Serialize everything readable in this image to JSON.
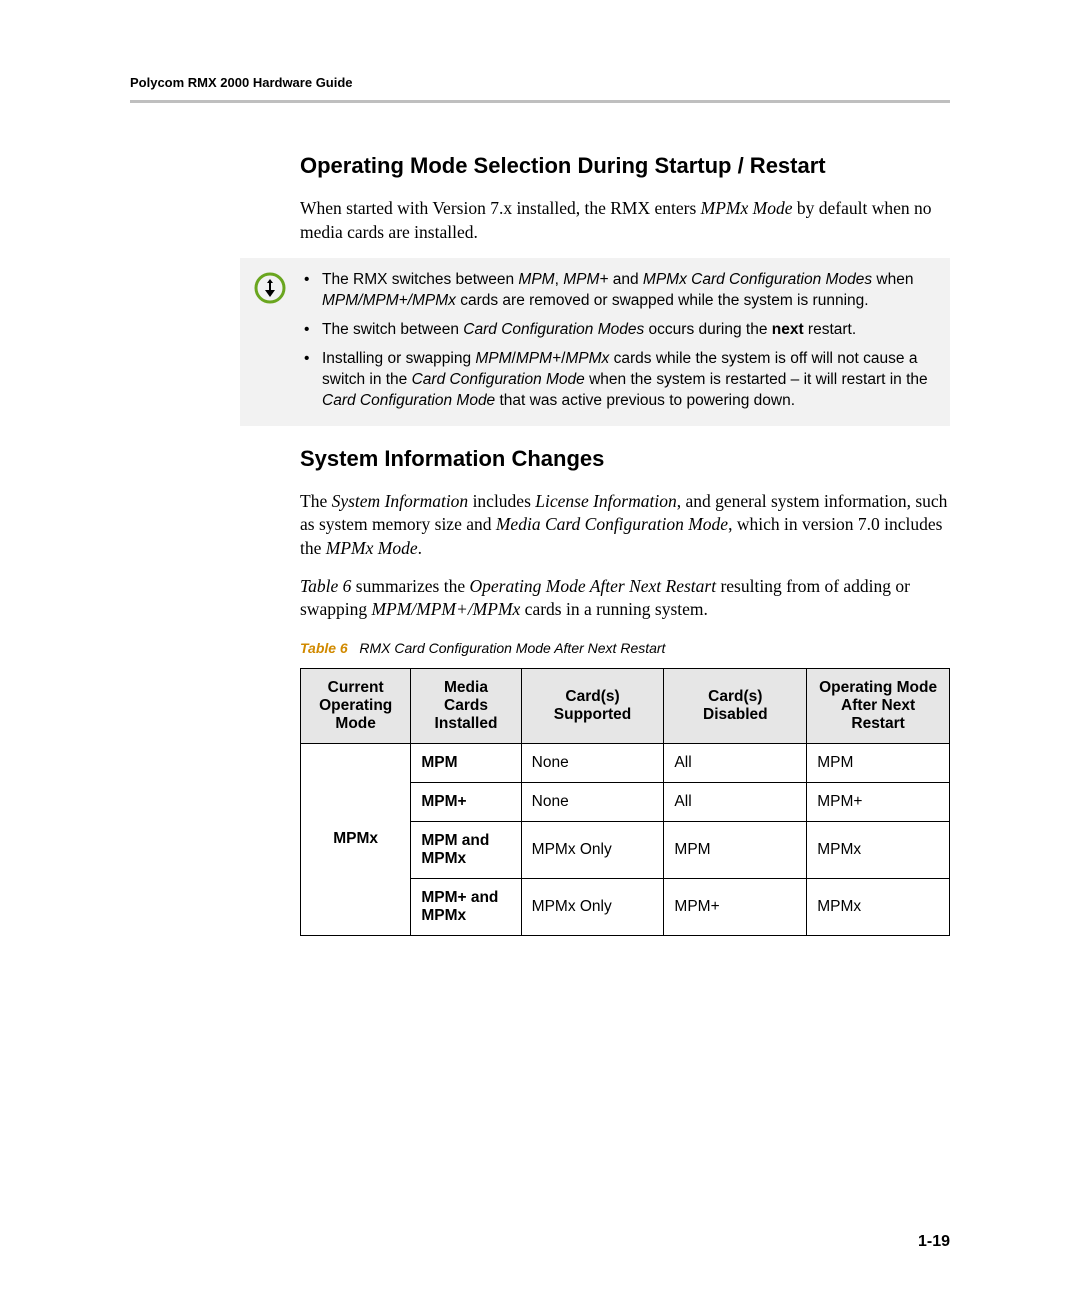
{
  "header": {
    "running": "Polycom RMX 2000 Hardware Guide"
  },
  "section1": {
    "title": "Operating Mode Selection During Startup / Restart",
    "para_html": "When started with Version 7.x installed, the RMX enters <span class='serif-i'>MPMx Mode</span> by default when no media cards are installed."
  },
  "note": {
    "items": [
      "The RMX switches between <i>MPM</i>, <i>MPM+</i> and <i>MPMx Card Configuration Modes</i> when <i>MPM/MPM+/MPMx</i> cards are removed or swapped while the system is running.",
      "The switch between <i>Card Configuration Modes</i> occurs during the <b>next</b> restart.",
      "Installing or swapping <i>MPM</i>/<i>MPM+</i>/<i>MPMx</i> cards while the system is off will not cause a switch in the <i>Card Configuration Mode</i> when the system is restarted – it will restart in the <i>Card Configuration Mode</i> that was active previous to powering down."
    ]
  },
  "section2": {
    "title": "System Information Changes",
    "para1_html": "The <span class='serif-i'>System Information</span> includes <span class='serif-i'>License Information</span>, and general system information, such as system memory size and <span class='serif-i'>Media Card Configuration Mode</span>, which in version 7.0 includes the <span class='serif-i'>MPMx Mode</span>.",
    "para2_html": "<span class='serif-i'>Table 6</span> summarizes the <span class='serif-i'>Operating Mode After Next Restart</span> resulting from of adding or swapping <span class='serif-i'>MPM/MPM+/MPMx</span> cards in a running system."
  },
  "table": {
    "label": "Table 6",
    "caption": "RMX Card Configuration Mode After Next Restart",
    "columns": [
      "Current Operating Mode",
      "Media Cards Installed",
      "Card(s) Supported",
      "Card(s) Disabled",
      "Operating Mode After Next Restart"
    ],
    "rowgroup_label": "MPMx",
    "rows": [
      {
        "media": "MPM",
        "supported": "None",
        "disabled": "All",
        "after": "MPM"
      },
      {
        "media": "MPM+",
        "supported": "None",
        "disabled": "All",
        "after": "MPM+"
      },
      {
        "media": "MPM and MPMx",
        "supported": "MPMx Only",
        "disabled": "MPM",
        "after": "MPMx"
      },
      {
        "media": "MPM+ and MPMx",
        "supported": "MPMx Only",
        "disabled": "MPM+",
        "after": "MPMx"
      }
    ],
    "col_widths_pct": [
      17,
      17,
      22,
      22,
      22
    ],
    "header_bg": "#e6e6e6",
    "border_color": "#000000"
  },
  "page_number": "1-19",
  "colors": {
    "rule": "#bfbfbf",
    "note_bg": "#f2f2f2",
    "note_icon_ring": "#6aa61f",
    "note_icon_fill": "#000000",
    "table_label": "#d18a00"
  }
}
